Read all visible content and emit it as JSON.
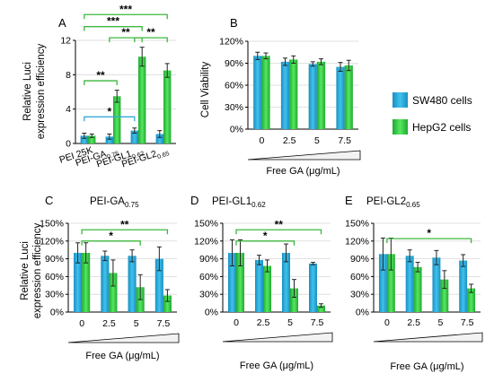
{
  "colors": {
    "blue": "#29A7D6",
    "green": "#2ECC40",
    "sig_blue": "#34A9D8",
    "sig_green": "#3DB83D"
  },
  "legend": {
    "items": [
      "SW480 cells",
      "HepG2 cells"
    ]
  },
  "chart_data": [
    {
      "id": "A",
      "type": "bar",
      "panel_label": "A",
      "ylabel": "Relative Luci expression efficiency",
      "ylim": [
        0,
        12
      ],
      "yticks": [
        0,
        4,
        8,
        12
      ],
      "ytick_labels": [
        "0",
        "4",
        "8",
        "12"
      ],
      "categories": [
        "PEI 25K",
        "PEI-GA",
        "PEI-GL1",
        "PEI-GL2"
      ],
      "category_subscripts": [
        "",
        "0.75",
        "0.62",
        "0.65"
      ],
      "series": [
        {
          "name": "SW480 cells",
          "values": [
            0.9,
            0.8,
            1.5,
            1.1
          ],
          "errors": [
            0.3,
            0.3,
            0.3,
            0.4
          ]
        },
        {
          "name": "HepG2 cells",
          "values": [
            0.9,
            5.5,
            10.1,
            8.5
          ],
          "errors": [
            0.2,
            0.7,
            1.1,
            0.8
          ]
        }
      ],
      "significance": [
        {
          "from": 0,
          "to": 2,
          "label": "*",
          "y": 3.1,
          "color": "blue"
        },
        {
          "from": 0,
          "to": 1,
          "label": "**",
          "y": 7.3,
          "color": "green"
        },
        {
          "from": 1,
          "to": 2,
          "label": "**",
          "y": 12.3,
          "color": "green"
        },
        {
          "from": 2,
          "to": 3,
          "label": "**",
          "y": 12.3,
          "color": "green"
        },
        {
          "from": 0,
          "to": 2,
          "label": "***",
          "y": 13.6,
          "color": "green"
        },
        {
          "from": 0,
          "to": 3,
          "label": "***",
          "y": 15.0,
          "color": "green"
        }
      ]
    },
    {
      "id": "B",
      "type": "bar",
      "panel_label": "B",
      "ylabel": "Cell Viability",
      "xlabel": "Free GA (μg/mL)",
      "ylim": [
        0,
        120
      ],
      "yticks": [
        0,
        30,
        60,
        90,
        120
      ],
      "ytick_labels": [
        "0%",
        "30%",
        "60%",
        "90%",
        "120%"
      ],
      "categories": [
        "0",
        "2.5",
        "5",
        "7.5"
      ],
      "series": [
        {
          "name": "SW480 cells",
          "values": [
            100,
            92,
            89,
            85
          ],
          "errors": [
            5,
            5,
            3,
            6
          ]
        },
        {
          "name": "HepG2 cells",
          "values": [
            100,
            95,
            92,
            87
          ],
          "errors": [
            4,
            5,
            4,
            7
          ]
        }
      ],
      "significance": []
    },
    {
      "id": "C",
      "type": "bar",
      "panel_label": "C",
      "subtitle": "PEI-GA",
      "subtitle_sub": "0.75",
      "ylabel": "Relative Luci expression efficiency",
      "xlabel": "Free GA (μg/mL)",
      "ylim": [
        0,
        150
      ],
      "yticks": [
        0,
        30,
        60,
        90,
        120,
        150
      ],
      "ytick_labels": [
        "0%",
        "30%",
        "60%",
        "90%",
        "120%",
        "150%"
      ],
      "categories": [
        "0",
        "2.5",
        "5",
        "7.5"
      ],
      "series": [
        {
          "name": "SW480 cells",
          "values": [
            100,
            95,
            95,
            90
          ],
          "errors": [
            17,
            8,
            10,
            20
          ]
        },
        {
          "name": "HepG2 cells",
          "values": [
            100,
            66,
            42,
            28
          ],
          "errors": [
            17,
            22,
            21,
            10
          ]
        }
      ],
      "significance": [
        {
          "from": 0,
          "to": 2,
          "label": "*",
          "y": 120,
          "color": "green"
        },
        {
          "from": 0,
          "to": 3,
          "label": "**",
          "y": 139,
          "color": "green"
        }
      ]
    },
    {
      "id": "D",
      "type": "bar",
      "panel_label": "D",
      "subtitle": "PEI-GL1",
      "subtitle_sub": "0.62",
      "xlabel": "Free GA (μg/mL)",
      "ylim": [
        0,
        150
      ],
      "yticks": [
        0,
        30,
        60,
        90,
        120,
        150
      ],
      "ytick_labels": [
        "0%",
        "30%",
        "60%",
        "90%",
        "120%",
        "150%"
      ],
      "categories": [
        "0",
        "2.5",
        "5",
        "7.5"
      ],
      "series": [
        {
          "name": "SW480 cells",
          "values": [
            100,
            88,
            100,
            82
          ],
          "errors": [
            22,
            8,
            15,
            2
          ]
        },
        {
          "name": "HepG2 cells",
          "values": [
            100,
            78,
            40,
            11
          ],
          "errors": [
            22,
            10,
            15,
            3
          ]
        }
      ],
      "significance": [
        {
          "from": 0,
          "to": 2,
          "label": "*",
          "y": 120,
          "color": "green"
        },
        {
          "from": 0,
          "to": 3,
          "label": "**",
          "y": 139,
          "color": "green"
        }
      ]
    },
    {
      "id": "E",
      "type": "bar",
      "panel_label": "E",
      "subtitle": "PEI-GL2",
      "subtitle_sub": "0.65",
      "xlabel": "Free GA (μg/mL)",
      "ylim": [
        0,
        150
      ],
      "yticks": [
        0,
        30,
        60,
        90,
        120,
        150
      ],
      "ytick_labels": [
        "0%",
        "30%",
        "60%",
        "90%",
        "120%",
        "150%"
      ],
      "categories": [
        "0",
        "2.5",
        "5",
        "7.5"
      ],
      "series": [
        {
          "name": "SW480 cells",
          "values": [
            98,
            95,
            92,
            87
          ],
          "errors": [
            27,
            10,
            12,
            10
          ]
        },
        {
          "name": "HepG2 cells",
          "values": [
            98,
            76,
            55,
            40
          ],
          "errors": [
            27,
            8,
            15,
            7
          ]
        }
      ],
      "significance": [
        {
          "from": 0,
          "to": 3,
          "label": "*",
          "y": 124,
          "color": "green"
        }
      ]
    }
  ]
}
